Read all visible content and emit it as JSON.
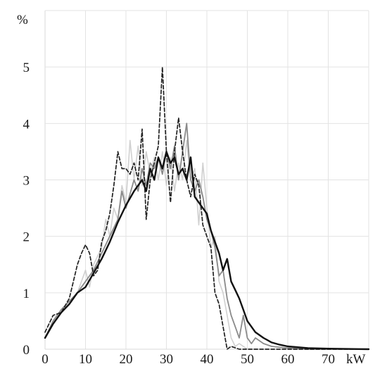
{
  "chart_data": {
    "type": "line",
    "ylabel": "%",
    "xlabel": "kW",
    "xlim": [
      0,
      80
    ],
    "ylim": [
      0,
      6
    ],
    "x_ticks": [
      0,
      10,
      20,
      30,
      40,
      50,
      60,
      70
    ],
    "y_ticks": [
      0,
      1,
      2,
      3,
      4,
      5
    ],
    "grid": true,
    "series": [
      {
        "style": "light-gray-solid",
        "color": "#d0d0d0",
        "points": [
          [
            0,
            0.2
          ],
          [
            2,
            0.5
          ],
          [
            4,
            0.7
          ],
          [
            6,
            0.8
          ],
          [
            8,
            1.0
          ],
          [
            10,
            1.4
          ],
          [
            11,
            1.1
          ],
          [
            12,
            1.5
          ],
          [
            14,
            1.8
          ],
          [
            15,
            2.3
          ],
          [
            16,
            2.0
          ],
          [
            17,
            2.5
          ],
          [
            18,
            2.3
          ],
          [
            19,
            2.9
          ],
          [
            20,
            2.6
          ],
          [
            21,
            3.7
          ],
          [
            22,
            3.0
          ],
          [
            23,
            3.6
          ],
          [
            24,
            2.9
          ],
          [
            25,
            3.5
          ],
          [
            26,
            3.1
          ],
          [
            27,
            3.4
          ],
          [
            28,
            3.0
          ],
          [
            29,
            3.5
          ],
          [
            30,
            2.9
          ],
          [
            31,
            3.4
          ],
          [
            32,
            2.8
          ],
          [
            33,
            3.3
          ],
          [
            34,
            3.0
          ],
          [
            35,
            3.7
          ],
          [
            36,
            3.0
          ],
          [
            37,
            3.2
          ],
          [
            38,
            2.2
          ],
          [
            39,
            3.3
          ],
          [
            40,
            2.5
          ],
          [
            41,
            1.8
          ],
          [
            42,
            2.0
          ],
          [
            43,
            1.2
          ],
          [
            44,
            1.0
          ],
          [
            45,
            0.6
          ],
          [
            46,
            0.2
          ],
          [
            47,
            0.05
          ],
          [
            48,
            0.1
          ],
          [
            50,
            0.0
          ],
          [
            55,
            0.0
          ],
          [
            80,
            0.0
          ]
        ]
      },
      {
        "style": "gray-solid",
        "color": "#8a8a8a",
        "points": [
          [
            0,
            0.2
          ],
          [
            2,
            0.5
          ],
          [
            4,
            0.7
          ],
          [
            6,
            0.85
          ],
          [
            8,
            1.0
          ],
          [
            10,
            1.2
          ],
          [
            12,
            1.4
          ],
          [
            14,
            1.7
          ],
          [
            16,
            2.0
          ],
          [
            18,
            2.3
          ],
          [
            19,
            2.8
          ],
          [
            20,
            2.5
          ],
          [
            22,
            3.0
          ],
          [
            23,
            2.8
          ],
          [
            24,
            3.2
          ],
          [
            25,
            2.9
          ],
          [
            26,
            3.3
          ],
          [
            27,
            3.2
          ],
          [
            28,
            3.4
          ],
          [
            29,
            3.1
          ],
          [
            30,
            3.5
          ],
          [
            31,
            3.2
          ],
          [
            32,
            3.6
          ],
          [
            33,
            3.0
          ],
          [
            34,
            3.5
          ],
          [
            35,
            4.0
          ],
          [
            36,
            3.0
          ],
          [
            37,
            2.8
          ],
          [
            38,
            3.0
          ],
          [
            39,
            2.7
          ],
          [
            40,
            2.3
          ],
          [
            41,
            2.1
          ],
          [
            42,
            1.8
          ],
          [
            43,
            1.3
          ],
          [
            44,
            1.4
          ],
          [
            45,
            0.9
          ],
          [
            46,
            0.6
          ],
          [
            47,
            0.4
          ],
          [
            48,
            0.2
          ],
          [
            49,
            0.6
          ],
          [
            50,
            0.2
          ],
          [
            51,
            0.1
          ],
          [
            52,
            0.2
          ],
          [
            54,
            0.1
          ],
          [
            56,
            0.05
          ],
          [
            60,
            0.02
          ],
          [
            65,
            0.0
          ],
          [
            80,
            0.0
          ]
        ]
      },
      {
        "style": "black-dashed",
        "color": "#222222",
        "points": [
          [
            0,
            0.3
          ],
          [
            2,
            0.6
          ],
          [
            4,
            0.65
          ],
          [
            6,
            0.9
          ],
          [
            8,
            1.5
          ],
          [
            9,
            1.7
          ],
          [
            10,
            1.85
          ],
          [
            11,
            1.7
          ],
          [
            12,
            1.3
          ],
          [
            13,
            1.4
          ],
          [
            14,
            1.9
          ],
          [
            15,
            2.1
          ],
          [
            16,
            2.4
          ],
          [
            17,
            2.9
          ],
          [
            18,
            3.5
          ],
          [
            19,
            3.2
          ],
          [
            20,
            3.2
          ],
          [
            21,
            3.1
          ],
          [
            22,
            3.3
          ],
          [
            23,
            3.0
          ],
          [
            24,
            3.9
          ],
          [
            25,
            2.3
          ],
          [
            26,
            3.0
          ],
          [
            27,
            3.3
          ],
          [
            28,
            3.6
          ],
          [
            29,
            5.0
          ],
          [
            30,
            3.5
          ],
          [
            31,
            2.6
          ],
          [
            32,
            3.5
          ],
          [
            33,
            4.1
          ],
          [
            34,
            3.5
          ],
          [
            35,
            3.0
          ],
          [
            36,
            2.7
          ],
          [
            37,
            3.1
          ],
          [
            38,
            2.9
          ],
          [
            39,
            2.2
          ],
          [
            40,
            2.0
          ],
          [
            41,
            1.8
          ],
          [
            42,
            1.0
          ],
          [
            43,
            0.8
          ],
          [
            44,
            0.4
          ],
          [
            45,
            0.0
          ],
          [
            46,
            0.05
          ],
          [
            48,
            0.0
          ],
          [
            80,
            0.0
          ]
        ]
      },
      {
        "style": "black-thick",
        "color": "#111111",
        "points": [
          [
            0,
            0.2
          ],
          [
            2,
            0.45
          ],
          [
            4,
            0.65
          ],
          [
            6,
            0.8
          ],
          [
            8,
            1.0
          ],
          [
            10,
            1.1
          ],
          [
            12,
            1.35
          ],
          [
            14,
            1.6
          ],
          [
            16,
            1.9
          ],
          [
            18,
            2.25
          ],
          [
            20,
            2.55
          ],
          [
            22,
            2.8
          ],
          [
            24,
            3.0
          ],
          [
            25,
            2.8
          ],
          [
            26,
            3.2
          ],
          [
            27,
            3.0
          ],
          [
            28,
            3.4
          ],
          [
            29,
            3.2
          ],
          [
            30,
            3.5
          ],
          [
            31,
            3.3
          ],
          [
            32,
            3.4
          ],
          [
            33,
            3.1
          ],
          [
            34,
            3.2
          ],
          [
            35,
            3.0
          ],
          [
            36,
            3.4
          ],
          [
            37,
            2.7
          ],
          [
            38,
            2.6
          ],
          [
            40,
            2.4
          ],
          [
            41,
            2.1
          ],
          [
            42,
            1.9
          ],
          [
            43,
            1.7
          ],
          [
            44,
            1.4
          ],
          [
            45,
            1.6
          ],
          [
            46,
            1.2
          ],
          [
            47,
            1.05
          ],
          [
            48,
            0.9
          ],
          [
            49,
            0.7
          ],
          [
            50,
            0.5
          ],
          [
            52,
            0.3
          ],
          [
            54,
            0.2
          ],
          [
            56,
            0.12
          ],
          [
            58,
            0.08
          ],
          [
            60,
            0.05
          ],
          [
            65,
            0.02
          ],
          [
            70,
            0.01
          ],
          [
            80,
            0.0
          ]
        ]
      }
    ]
  }
}
